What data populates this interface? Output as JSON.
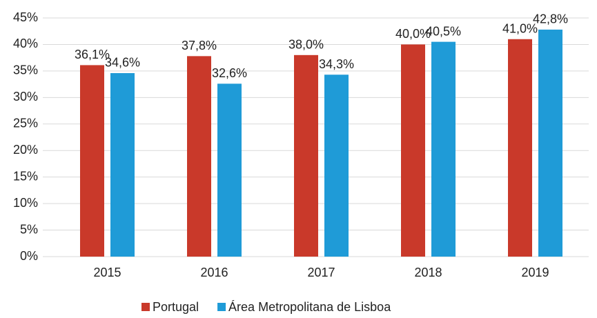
{
  "chart_data": {
    "type": "bar",
    "categories": [
      "2015",
      "2016",
      "2017",
      "2018",
      "2019"
    ],
    "series": [
      {
        "name": "Portugal",
        "color": "#c9392a",
        "values": [
          36.1,
          37.8,
          38.0,
          40.0,
          41.0
        ],
        "value_labels": [
          "36,1%",
          "37,8%",
          "38,0%",
          "40,0%",
          "41,0%"
        ]
      },
      {
        "name": "Área Metropolitana de Lisboa",
        "color": "#1f9bd7",
        "values": [
          34.6,
          32.6,
          34.3,
          40.5,
          42.8
        ],
        "value_labels": [
          "34,6%",
          "32,6%",
          "34,3%",
          "40,5%",
          "42,8%"
        ]
      }
    ],
    "ylim": [
      0,
      45
    ],
    "yticks": [
      {
        "value": 0,
        "label": "0%"
      },
      {
        "value": 5,
        "label": "5%"
      },
      {
        "value": 10,
        "label": "10%"
      },
      {
        "value": 15,
        "label": "15%"
      },
      {
        "value": 20,
        "label": "20%"
      },
      {
        "value": 25,
        "label": "25%"
      },
      {
        "value": 30,
        "label": "30%"
      },
      {
        "value": 35,
        "label": "35%"
      },
      {
        "value": 40,
        "label": "40%"
      },
      {
        "value": 45,
        "label": "45%"
      }
    ],
    "grid": true,
    "legend": "bottom"
  }
}
